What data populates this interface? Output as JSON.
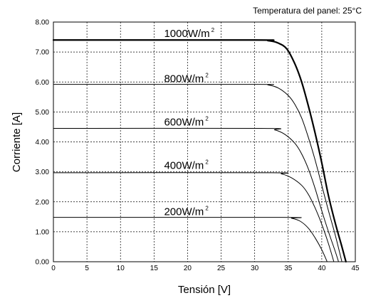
{
  "chart_data": {
    "type": "line",
    "annotation": "Temperatura del panel: 25°C",
    "xlabel": "Tensión [V]",
    "ylabel": "Corriente [A]",
    "xlim": [
      0,
      45
    ],
    "ylim": [
      0,
      8
    ],
    "x_ticks": [
      "0",
      "5",
      "10",
      "15",
      "20",
      "25",
      "30",
      "35",
      "40",
      "45"
    ],
    "y_ticks": [
      "0.00",
      "1.00",
      "2.00",
      "3.00",
      "4.00",
      "5.00",
      "6.00",
      "7.00",
      "8.00"
    ],
    "grid": true,
    "series": [
      {
        "name": "1000W/m2",
        "label_main": "1000W/m",
        "label_sup": "2",
        "isc": 7.4,
        "voc": 43.6,
        "highlight": true,
        "label_at": [
          16.5,
          7.5
        ],
        "points": [
          [
            0,
            7.4
          ],
          [
            30,
            7.4
          ],
          [
            32,
            7.38
          ],
          [
            33.5,
            7.3
          ],
          [
            34.8,
            7.1
          ],
          [
            36,
            6.6
          ],
          [
            37,
            6.0
          ],
          [
            38,
            5.2
          ],
          [
            39,
            4.3
          ],
          [
            40,
            3.3
          ],
          [
            41,
            2.2
          ],
          [
            42,
            1.3
          ],
          [
            43,
            0.5
          ],
          [
            43.6,
            0
          ]
        ]
      },
      {
        "name": "800W/m2",
        "label_main": "800W/m",
        "label_sup": "2",
        "isc": 5.92,
        "voc": 43.0,
        "highlight": false,
        "label_at": [
          16.5,
          6.0
        ],
        "points": [
          [
            0,
            5.92
          ],
          [
            30,
            5.92
          ],
          [
            32,
            5.9
          ],
          [
            33.5,
            5.8
          ],
          [
            35,
            5.55
          ],
          [
            36,
            5.25
          ],
          [
            37,
            4.8
          ],
          [
            38,
            4.15
          ],
          [
            39,
            3.4
          ],
          [
            40,
            2.55
          ],
          [
            41,
            1.7
          ],
          [
            42,
            0.9
          ],
          [
            43,
            0
          ]
        ]
      },
      {
        "name": "600W/m2",
        "label_main": "600W/m",
        "label_sup": "2",
        "isc": 4.45,
        "voc": 42.5,
        "highlight": false,
        "label_at": [
          16.5,
          4.55
        ],
        "points": [
          [
            0,
            4.45
          ],
          [
            31,
            4.45
          ],
          [
            33,
            4.4
          ],
          [
            34.5,
            4.25
          ],
          [
            36,
            3.95
          ],
          [
            37,
            3.6
          ],
          [
            38,
            3.1
          ],
          [
            39,
            2.45
          ],
          [
            40,
            1.7
          ],
          [
            41,
            1.0
          ],
          [
            42,
            0.35
          ],
          [
            42.5,
            0
          ]
        ]
      },
      {
        "name": "400W/m2",
        "label_main": "400W/m",
        "label_sup": "2",
        "isc": 2.97,
        "voc": 41.8,
        "highlight": false,
        "label_at": [
          16.5,
          3.1
        ],
        "points": [
          [
            0,
            2.97
          ],
          [
            32,
            2.97
          ],
          [
            34,
            2.93
          ],
          [
            35.5,
            2.8
          ],
          [
            37,
            2.55
          ],
          [
            38,
            2.25
          ],
          [
            39,
            1.8
          ],
          [
            40,
            1.25
          ],
          [
            41,
            0.6
          ],
          [
            41.8,
            0
          ]
        ]
      },
      {
        "name": "200W/m2",
        "label_main": "200W/m",
        "label_sup": "2",
        "isc": 1.48,
        "voc": 40.8,
        "highlight": false,
        "label_at": [
          16.5,
          1.55
        ],
        "points": [
          [
            0,
            1.48
          ],
          [
            34,
            1.48
          ],
          [
            35.5,
            1.45
          ],
          [
            36.8,
            1.35
          ],
          [
            38,
            1.12
          ],
          [
            39,
            0.8
          ],
          [
            40,
            0.4
          ],
          [
            40.8,
            0
          ]
        ]
      }
    ]
  }
}
